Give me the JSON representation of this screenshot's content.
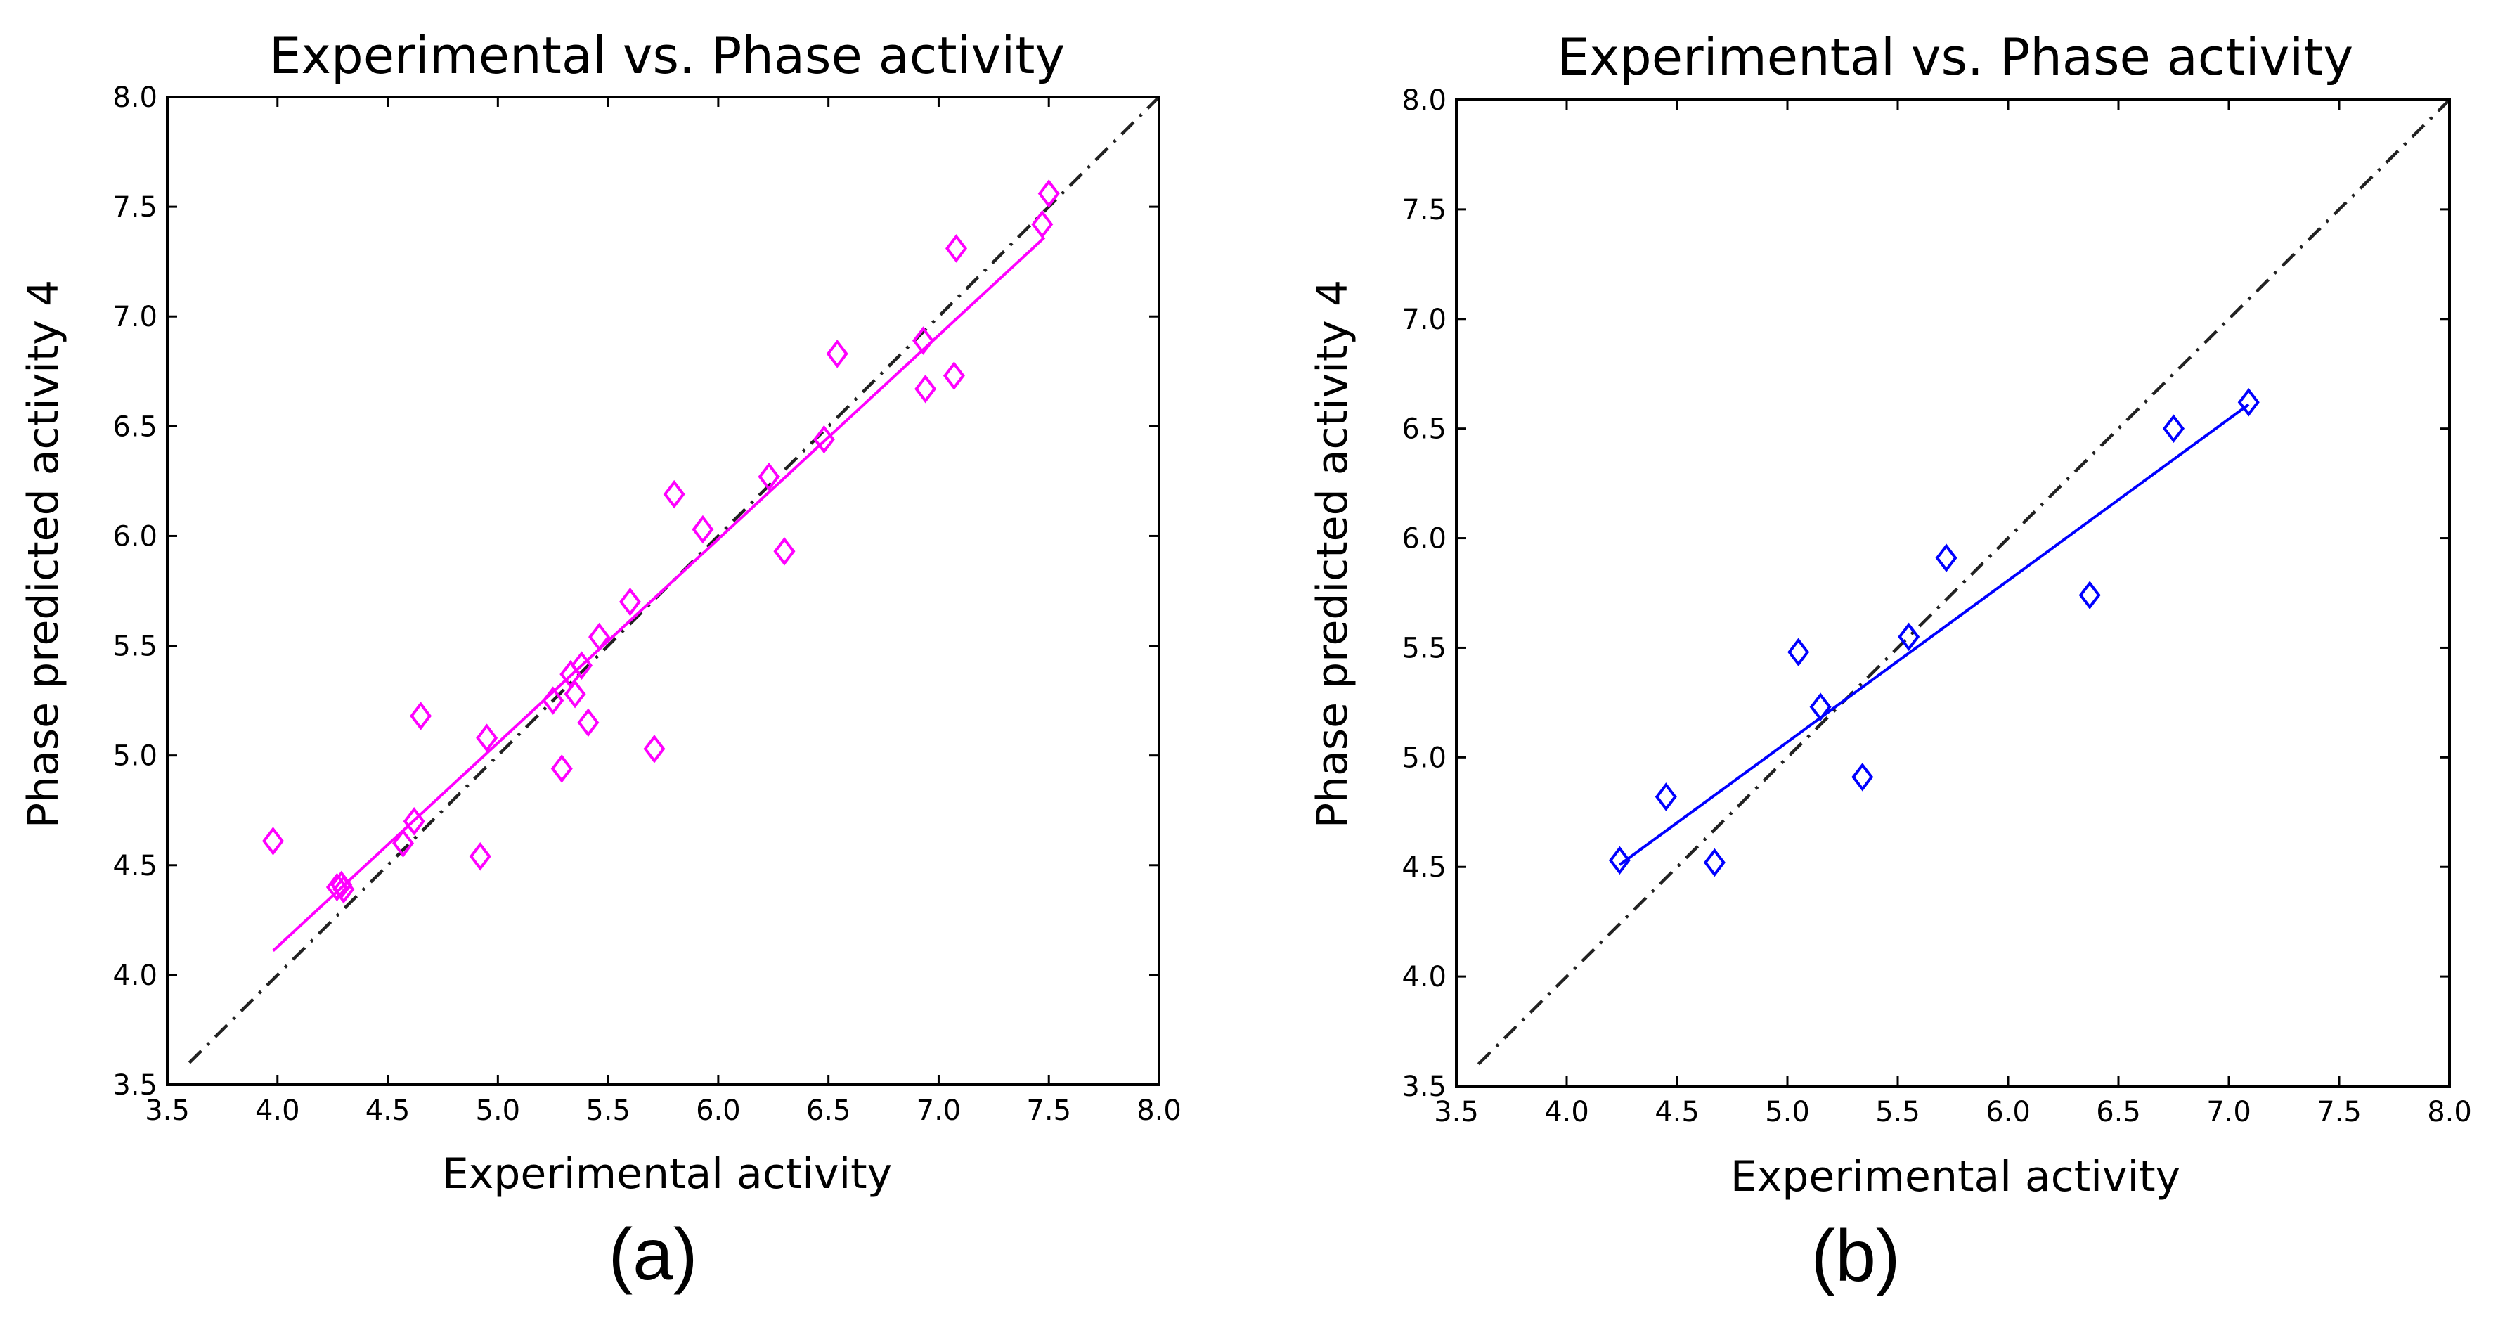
{
  "chart_data": [
    {
      "type": "scatter",
      "panel_label": "(a)",
      "title": "Experimental vs. Phase activity",
      "xlabel": "Experimental activity",
      "ylabel": "Phase predicted activity 4",
      "xlim": [
        3.5,
        8.0
      ],
      "ylim": [
        3.5,
        8.0
      ],
      "xticks": [
        "3.5",
        "4.0",
        "4.5",
        "5.0",
        "5.5",
        "6.0",
        "6.5",
        "7.0",
        "7.5",
        "8.0"
      ],
      "yticks": [
        "3.5",
        "4.0",
        "4.5",
        "5.0",
        "5.5",
        "6.0",
        "6.5",
        "7.0",
        "7.5",
        "8.0"
      ],
      "grid": false,
      "color": "#ff00ff",
      "marker": "diamond",
      "identity_line": {
        "x": [
          3.6,
          8.0
        ],
        "y": [
          3.6,
          8.0
        ]
      },
      "fit_line": {
        "x": [
          3.98,
          7.48
        ],
        "y": [
          4.11,
          7.36
        ]
      },
      "points": {
        "x": [
          3.98,
          4.27,
          4.29,
          4.3,
          4.57,
          4.62,
          4.65,
          4.92,
          4.95,
          5.25,
          5.29,
          5.33,
          5.35,
          5.38,
          5.41,
          5.46,
          5.6,
          5.71,
          5.8,
          5.93,
          6.23,
          6.3,
          6.48,
          6.54,
          6.93,
          6.94,
          7.07,
          7.08,
          7.47,
          7.5
        ],
        "y": [
          4.61,
          4.4,
          4.41,
          4.39,
          4.6,
          4.7,
          5.18,
          4.54,
          5.08,
          5.25,
          4.94,
          5.37,
          5.28,
          5.41,
          5.15,
          5.54,
          5.7,
          5.03,
          6.19,
          6.03,
          6.27,
          5.93,
          6.44,
          6.83,
          6.89,
          6.67,
          6.73,
          7.31,
          7.42,
          7.56
        ]
      }
    },
    {
      "type": "scatter",
      "panel_label": "(b)",
      "title": "Experimental vs. Phase activity",
      "xlabel": "Experimental activity",
      "ylabel": "Phase predicted activity 4",
      "xlim": [
        3.5,
        8.0
      ],
      "ylim": [
        3.5,
        8.0
      ],
      "xticks": [
        "3.5",
        "4.0",
        "4.5",
        "5.0",
        "5.5",
        "6.0",
        "6.5",
        "7.0",
        "7.5",
        "8.0"
      ],
      "yticks": [
        "3.5",
        "4.0",
        "4.5",
        "5.0",
        "5.5",
        "6.0",
        "6.5",
        "7.0",
        "7.5",
        "8.0"
      ],
      "grid": false,
      "color": "#0000ff",
      "marker": "diamond",
      "identity_line": {
        "x": [
          3.6,
          8.0
        ],
        "y": [
          3.6,
          8.0
        ]
      },
      "fit_line": {
        "x": [
          4.24,
          7.09
        ],
        "y": [
          4.51,
          6.61
        ]
      },
      "points": {
        "x": [
          4.24,
          4.45,
          4.67,
          5.05,
          5.15,
          5.34,
          5.55,
          5.72,
          6.37,
          6.75,
          7.09
        ],
        "y": [
          4.53,
          4.82,
          4.52,
          5.48,
          5.23,
          4.91,
          5.55,
          5.91,
          5.74,
          6.5,
          6.62
        ]
      }
    }
  ]
}
